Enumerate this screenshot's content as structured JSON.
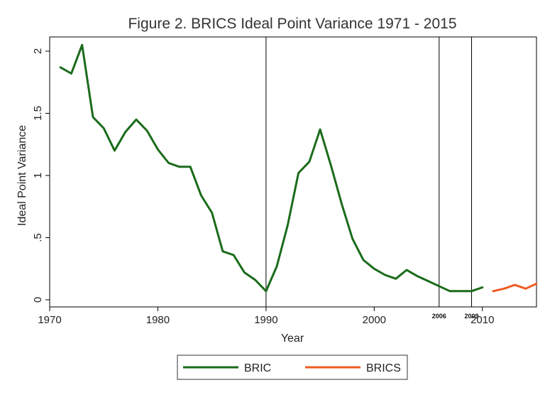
{
  "chart_data": {
    "type": "line",
    "title": "Figure 2. BRICS Ideal Point Variance 1971 - 2015",
    "xlabel": "Year",
    "ylabel": "Ideal Point Variance",
    "xlim": [
      1970,
      2015
    ],
    "ylim": [
      0,
      2.1
    ],
    "x_ticks": [
      {
        "value": 1970,
        "label": "1970"
      },
      {
        "value": 1980,
        "label": "1980"
      },
      {
        "value": 1990,
        "label": "1990"
      },
      {
        "value": 2000,
        "label": "2000"
      },
      {
        "value": 2010,
        "label": "2010"
      }
    ],
    "y_ticks": [
      {
        "value": 0,
        "label": "0"
      },
      {
        "value": 0.5,
        "label": ".5"
      },
      {
        "value": 1,
        "label": "1"
      },
      {
        "value": 1.5,
        "label": "1.5"
      },
      {
        "value": 2,
        "label": "2"
      }
    ],
    "reference_lines": [
      {
        "x": 1990,
        "label": ""
      },
      {
        "x": 2006,
        "label": "2006"
      },
      {
        "x": 2009,
        "label": "2009"
      }
    ],
    "grid": false,
    "legend_position": "bottom",
    "series": [
      {
        "name": "BRIC",
        "color": "#1a6b1a",
        "x": [
          1971,
          1972,
          1973,
          1974,
          1975,
          1976,
          1977,
          1978,
          1979,
          1980,
          1981,
          1982,
          1983,
          1984,
          1985,
          1986,
          1987,
          1988,
          1989,
          1990,
          1991,
          1992,
          1993,
          1994,
          1995,
          1996,
          1997,
          1998,
          1999,
          2000,
          2001,
          2002,
          2003,
          2004,
          2005,
          2006,
          2007,
          2008,
          2009,
          2010
        ],
        "y": [
          1.87,
          1.82,
          2.05,
          1.47,
          1.38,
          1.2,
          1.35,
          1.45,
          1.36,
          1.21,
          1.1,
          1.07,
          1.07,
          0.84,
          0.7,
          0.39,
          0.36,
          0.22,
          0.16,
          0.07,
          0.27,
          0.6,
          1.02,
          1.11,
          1.37,
          1.08,
          0.77,
          0.49,
          0.32,
          0.25,
          0.2,
          0.17,
          0.24,
          0.19,
          0.15,
          0.11,
          0.07,
          0.07,
          0.07,
          0.1
        ]
      },
      {
        "name": "BRICS",
        "color": "#f05a22",
        "x": [
          2011,
          2012,
          2013,
          2014,
          2015
        ],
        "y": [
          0.07,
          0.09,
          0.12,
          0.09,
          0.13
        ]
      }
    ]
  }
}
